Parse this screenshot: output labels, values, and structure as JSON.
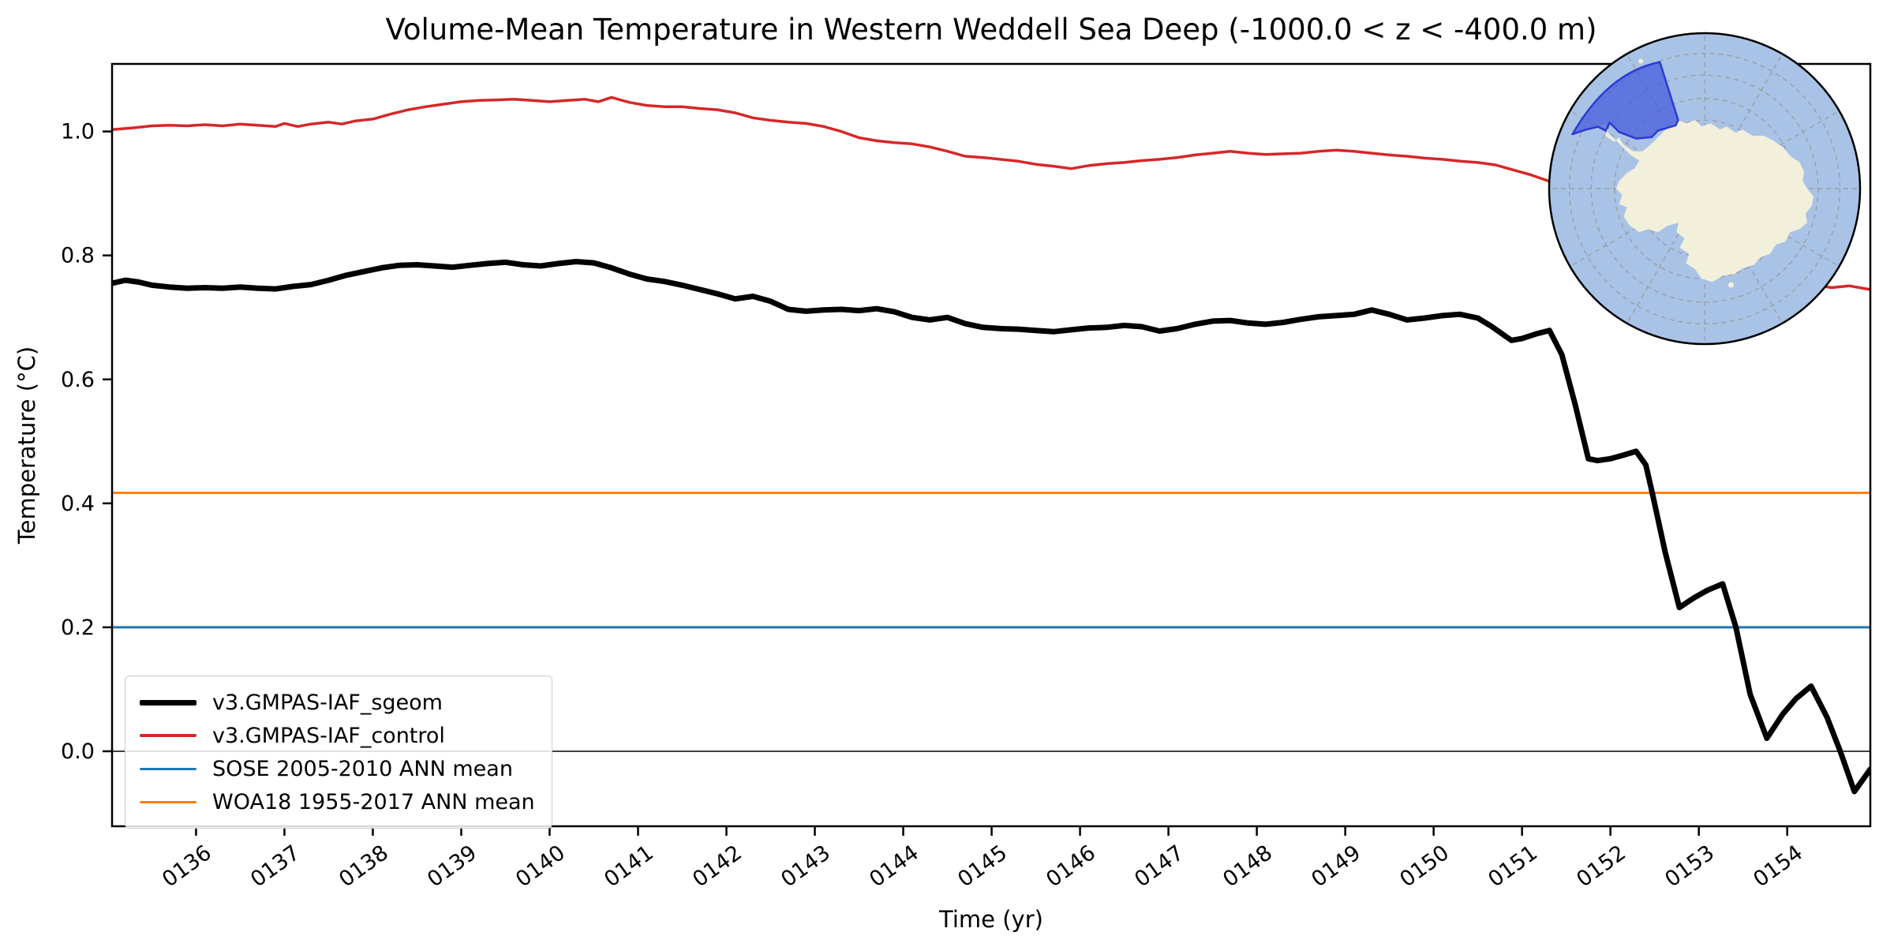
{
  "figure": {
    "title": "Volume-Mean Temperature in Western Weddell Sea Deep (-1000.0 < z < -400.0 m)",
    "xlabel": "Time (yr)",
    "ylabel": "Temperature (°C)"
  },
  "legend": {
    "items": [
      {
        "label": "v3.GMPAS-IAF_sgeom",
        "color": "#000000",
        "linewidth": 7
      },
      {
        "label": "v3.GMPAS-IAF_control",
        "color": "#d62728",
        "linewidth": 3.5
      },
      {
        "label": "SOSE 2005-2010 ANN mean",
        "color": "#1f77b4",
        "linewidth": 3
      },
      {
        "label": "WOA18 1955-2017 ANN mean",
        "color": "#ff7f0e",
        "linewidth": 3
      }
    ]
  },
  "chart_data": {
    "type": "line",
    "title": "Volume-Mean Temperature in Western Weddell Sea Deep (-1000.0 < z < -400.0 m)",
    "xlabel": "Time (yr)",
    "ylabel": "Temperature (°C)",
    "xlim": [
      135.05,
      154.94
    ],
    "ylim": [
      -0.121,
      1.109
    ],
    "x_ticks": [
      {
        "label": "0136",
        "value": 136
      },
      {
        "label": "0137",
        "value": 137
      },
      {
        "label": "0138",
        "value": 138
      },
      {
        "label": "0139",
        "value": 139
      },
      {
        "label": "0140",
        "value": 140
      },
      {
        "label": "0141",
        "value": 141
      },
      {
        "label": "0142",
        "value": 142
      },
      {
        "label": "0143",
        "value": 143
      },
      {
        "label": "0144",
        "value": 144
      },
      {
        "label": "0145",
        "value": 145
      },
      {
        "label": "0146",
        "value": 146
      },
      {
        "label": "0147",
        "value": 147
      },
      {
        "label": "0148",
        "value": 148
      },
      {
        "label": "0149",
        "value": 149
      },
      {
        "label": "0150",
        "value": 150
      },
      {
        "label": "0151",
        "value": 151
      },
      {
        "label": "0152",
        "value": 152
      },
      {
        "label": "0153",
        "value": 153
      },
      {
        "label": "0154",
        "value": 154
      }
    ],
    "y_ticks": [
      {
        "label": "0.0",
        "value": 0.0
      },
      {
        "label": "0.2",
        "value": 0.2
      },
      {
        "label": "0.4",
        "value": 0.4
      },
      {
        "label": "0.6",
        "value": 0.6
      },
      {
        "label": "0.8",
        "value": 0.8
      },
      {
        "label": "1.0",
        "value": 1.0
      }
    ],
    "hlines": [
      {
        "name": "zero-line",
        "y": 0.0,
        "color": "#000000",
        "linewidth": 1.5
      },
      {
        "name": "SOSE 2005-2010 ANN mean",
        "y": 0.2,
        "color": "#1f77b4",
        "linewidth": 3
      },
      {
        "name": "WOA18 1955-2017 ANN mean",
        "y": 0.417,
        "color": "#ff7f0e",
        "linewidth": 3
      }
    ],
    "series": [
      {
        "name": "v3.GMPAS-IAF_control",
        "color": "#d62728",
        "linewidth": 3.5,
        "points": [
          [
            135.05,
            1.003
          ],
          [
            135.3,
            1.006
          ],
          [
            135.5,
            1.009
          ],
          [
            135.7,
            1.01
          ],
          [
            135.9,
            1.009
          ],
          [
            136.1,
            1.011
          ],
          [
            136.3,
            1.009
          ],
          [
            136.5,
            1.012
          ],
          [
            136.7,
            1.01
          ],
          [
            136.9,
            1.008
          ],
          [
            137.0,
            1.013
          ],
          [
            137.15,
            1.008
          ],
          [
            137.3,
            1.012
          ],
          [
            137.5,
            1.015
          ],
          [
            137.65,
            1.012
          ],
          [
            137.8,
            1.017
          ],
          [
            138.0,
            1.02
          ],
          [
            138.2,
            1.028
          ],
          [
            138.4,
            1.035
          ],
          [
            138.6,
            1.04
          ],
          [
            138.8,
            1.044
          ],
          [
            139.0,
            1.048
          ],
          [
            139.2,
            1.05
          ],
          [
            139.4,
            1.051
          ],
          [
            139.6,
            1.052
          ],
          [
            139.8,
            1.05
          ],
          [
            140.0,
            1.048
          ],
          [
            140.2,
            1.05
          ],
          [
            140.4,
            1.052
          ],
          [
            140.55,
            1.048
          ],
          [
            140.7,
            1.055
          ],
          [
            140.9,
            1.047
          ],
          [
            141.1,
            1.042
          ],
          [
            141.3,
            1.04
          ],
          [
            141.5,
            1.04
          ],
          [
            141.7,
            1.037
          ],
          [
            141.9,
            1.035
          ],
          [
            142.1,
            1.03
          ],
          [
            142.3,
            1.022
          ],
          [
            142.5,
            1.018
          ],
          [
            142.7,
            1.015
          ],
          [
            142.9,
            1.013
          ],
          [
            143.1,
            1.008
          ],
          [
            143.3,
            1.0
          ],
          [
            143.5,
            0.99
          ],
          [
            143.7,
            0.985
          ],
          [
            143.9,
            0.982
          ],
          [
            144.1,
            0.98
          ],
          [
            144.3,
            0.975
          ],
          [
            144.5,
            0.968
          ],
          [
            144.7,
            0.96
          ],
          [
            144.9,
            0.958
          ],
          [
            145.1,
            0.955
          ],
          [
            145.3,
            0.952
          ],
          [
            145.5,
            0.947
          ],
          [
            145.7,
            0.944
          ],
          [
            145.9,
            0.94
          ],
          [
            146.1,
            0.945
          ],
          [
            146.3,
            0.948
          ],
          [
            146.5,
            0.95
          ],
          [
            146.7,
            0.953
          ],
          [
            146.9,
            0.955
          ],
          [
            147.1,
            0.958
          ],
          [
            147.3,
            0.962
          ],
          [
            147.5,
            0.965
          ],
          [
            147.7,
            0.968
          ],
          [
            147.9,
            0.965
          ],
          [
            148.1,
            0.963
          ],
          [
            148.3,
            0.964
          ],
          [
            148.5,
            0.965
          ],
          [
            148.7,
            0.968
          ],
          [
            148.9,
            0.97
          ],
          [
            149.1,
            0.968
          ],
          [
            149.3,
            0.965
          ],
          [
            149.5,
            0.962
          ],
          [
            149.7,
            0.96
          ],
          [
            149.9,
            0.957
          ],
          [
            150.1,
            0.955
          ],
          [
            150.3,
            0.952
          ],
          [
            150.5,
            0.95
          ],
          [
            150.7,
            0.946
          ],
          [
            150.9,
            0.938
          ],
          [
            151.1,
            0.93
          ],
          [
            151.3,
            0.92
          ],
          [
            151.6,
            0.905
          ],
          [
            152.0,
            0.882
          ],
          [
            152.4,
            0.86
          ],
          [
            152.8,
            0.838
          ],
          [
            153.2,
            0.815
          ],
          [
            153.6,
            0.79
          ],
          [
            154.0,
            0.768
          ],
          [
            154.3,
            0.753
          ],
          [
            154.5,
            0.748
          ],
          [
            154.7,
            0.751
          ],
          [
            154.94,
            0.745
          ]
        ]
      },
      {
        "name": "v3.GMPAS-IAF_sgeom",
        "color": "#000000",
        "linewidth": 7,
        "points": [
          [
            135.05,
            0.755
          ],
          [
            135.2,
            0.76
          ],
          [
            135.35,
            0.757
          ],
          [
            135.5,
            0.752
          ],
          [
            135.7,
            0.749
          ],
          [
            135.9,
            0.747
          ],
          [
            136.1,
            0.748
          ],
          [
            136.3,
            0.747
          ],
          [
            136.5,
            0.749
          ],
          [
            136.7,
            0.747
          ],
          [
            136.9,
            0.746
          ],
          [
            137.1,
            0.75
          ],
          [
            137.3,
            0.753
          ],
          [
            137.5,
            0.76
          ],
          [
            137.7,
            0.768
          ],
          [
            137.9,
            0.774
          ],
          [
            138.1,
            0.78
          ],
          [
            138.3,
            0.784
          ],
          [
            138.5,
            0.785
          ],
          [
            138.7,
            0.783
          ],
          [
            138.9,
            0.781
          ],
          [
            139.1,
            0.784
          ],
          [
            139.3,
            0.787
          ],
          [
            139.5,
            0.789
          ],
          [
            139.7,
            0.785
          ],
          [
            139.9,
            0.783
          ],
          [
            140.1,
            0.787
          ],
          [
            140.3,
            0.79
          ],
          [
            140.5,
            0.788
          ],
          [
            140.7,
            0.78
          ],
          [
            140.9,
            0.77
          ],
          [
            141.1,
            0.762
          ],
          [
            141.3,
            0.758
          ],
          [
            141.5,
            0.752
          ],
          [
            141.7,
            0.745
          ],
          [
            141.9,
            0.738
          ],
          [
            142.1,
            0.73
          ],
          [
            142.3,
            0.734
          ],
          [
            142.5,
            0.726
          ],
          [
            142.7,
            0.713
          ],
          [
            142.9,
            0.71
          ],
          [
            143.1,
            0.712
          ],
          [
            143.3,
            0.713
          ],
          [
            143.5,
            0.711
          ],
          [
            143.7,
            0.714
          ],
          [
            143.9,
            0.709
          ],
          [
            144.1,
            0.7
          ],
          [
            144.3,
            0.696
          ],
          [
            144.5,
            0.7
          ],
          [
            144.7,
            0.69
          ],
          [
            144.9,
            0.684
          ],
          [
            145.1,
            0.682
          ],
          [
            145.3,
            0.681
          ],
          [
            145.5,
            0.679
          ],
          [
            145.7,
            0.677
          ],
          [
            145.9,
            0.68
          ],
          [
            146.1,
            0.683
          ],
          [
            146.3,
            0.684
          ],
          [
            146.5,
            0.687
          ],
          [
            146.7,
            0.685
          ],
          [
            146.9,
            0.678
          ],
          [
            147.1,
            0.682
          ],
          [
            147.3,
            0.689
          ],
          [
            147.5,
            0.694
          ],
          [
            147.7,
            0.695
          ],
          [
            147.9,
            0.691
          ],
          [
            148.1,
            0.689
          ],
          [
            148.3,
            0.692
          ],
          [
            148.5,
            0.697
          ],
          [
            148.7,
            0.701
          ],
          [
            148.9,
            0.703
          ],
          [
            149.1,
            0.705
          ],
          [
            149.3,
            0.712
          ],
          [
            149.5,
            0.705
          ],
          [
            149.7,
            0.696
          ],
          [
            149.9,
            0.699
          ],
          [
            150.1,
            0.703
          ],
          [
            150.3,
            0.705
          ],
          [
            150.5,
            0.699
          ],
          [
            150.65,
            0.686
          ],
          [
            150.88,
            0.663
          ],
          [
            151.0,
            0.666
          ],
          [
            151.15,
            0.673
          ],
          [
            151.31,
            0.679
          ],
          [
            151.45,
            0.64
          ],
          [
            151.6,
            0.56
          ],
          [
            151.75,
            0.472
          ],
          [
            151.85,
            0.469
          ],
          [
            152.0,
            0.472
          ],
          [
            152.15,
            0.478
          ],
          [
            152.29,
            0.484
          ],
          [
            152.4,
            0.462
          ],
          [
            152.47,
            0.419
          ],
          [
            152.62,
            0.321
          ],
          [
            152.78,
            0.232
          ],
          [
            152.95,
            0.248
          ],
          [
            153.1,
            0.26
          ],
          [
            153.27,
            0.27
          ],
          [
            153.42,
            0.2
          ],
          [
            153.58,
            0.092
          ],
          [
            153.77,
            0.021
          ],
          [
            153.95,
            0.06
          ],
          [
            154.1,
            0.085
          ],
          [
            154.27,
            0.105
          ],
          [
            154.45,
            0.055
          ],
          [
            154.6,
            0.0
          ],
          [
            154.76,
            -0.065
          ],
          [
            154.94,
            -0.029
          ]
        ]
      }
    ],
    "legend_position": "lower left",
    "grid": false
  },
  "inset_map": {
    "description": "South polar stereographic map of Antarctica with Western Weddell Sea region highlighted",
    "ocean_color": "#a9c3e6",
    "land_color": "#f2efdb",
    "region_fill": "#4357dd",
    "region_edge": "#2b3bd6",
    "graticule_color": "#999999",
    "outline_color": "#000000"
  }
}
